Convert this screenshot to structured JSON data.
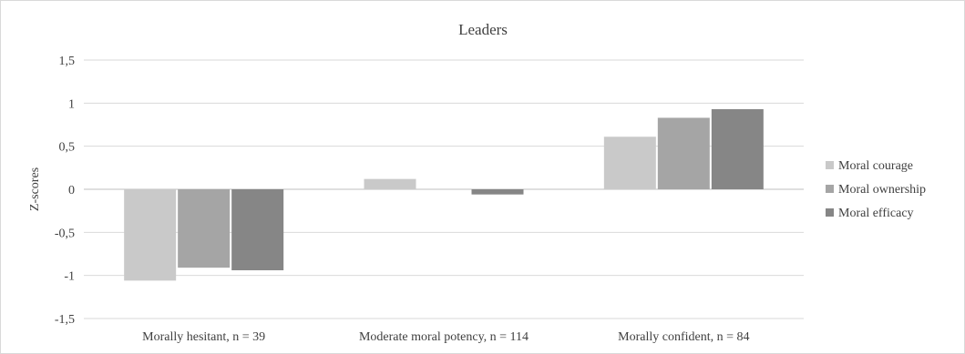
{
  "chart_data": {
    "type": "bar",
    "title": "Leaders",
    "xlabel": "",
    "ylabel": "Z-scores",
    "ylim": [
      -1.5,
      1.5
    ],
    "yticks": [
      1.5,
      1,
      0.5,
      0,
      -0.5,
      -1,
      -1.5
    ],
    "ytick_labels": [
      "1,5",
      "1",
      "0,5",
      "0",
      "-0,5",
      "-1",
      "-1,5"
    ],
    "categories": [
      "Morally hesitant, n = 39",
      "Moderate moral potency, n = 114",
      "Morally confident, n = 84"
    ],
    "series": [
      {
        "name": "Moral courage",
        "color": "#c9c9c9",
        "values": [
          -1.06,
          0.12,
          0.61
        ]
      },
      {
        "name": "Moral ownership",
        "color": "#a5a5a5",
        "values": [
          -0.91,
          0.0,
          0.83
        ]
      },
      {
        "name": "Moral efficacy",
        "color": "#868686",
        "values": [
          -0.94,
          -0.06,
          0.93
        ]
      }
    ],
    "grid": true,
    "legend_position": "right"
  }
}
